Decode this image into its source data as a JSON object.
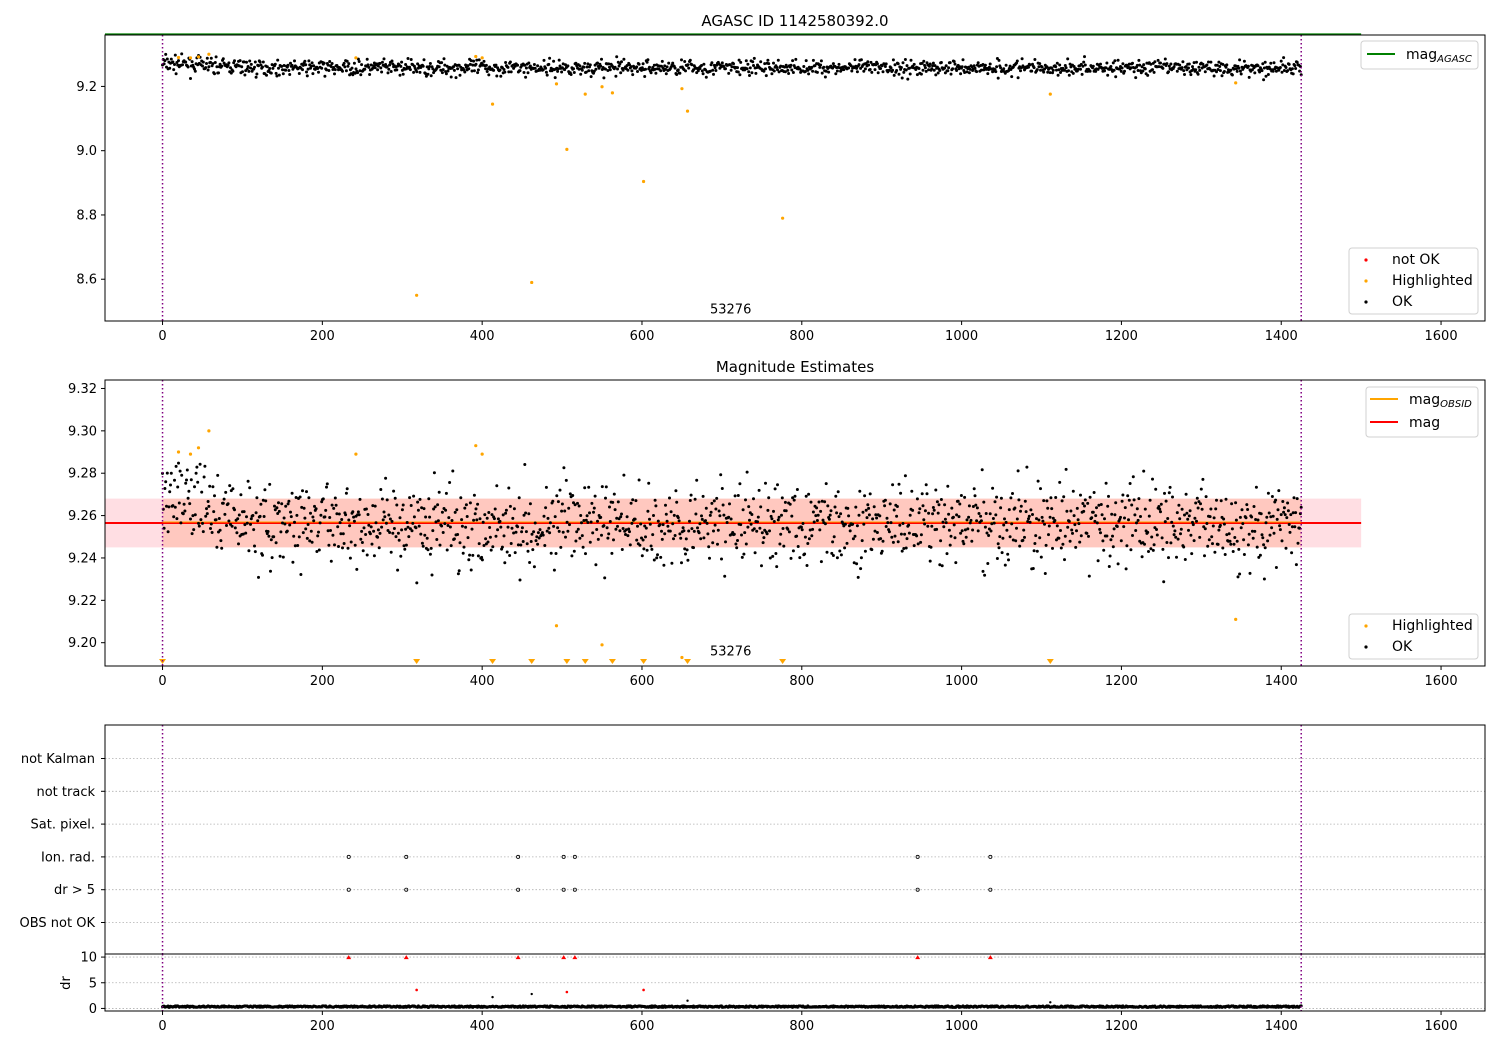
{
  "figure": {
    "title": "AGASC ID 1142580392.0",
    "panel2_title": "Magnitude Estimates",
    "obsid_label": "53276"
  },
  "colors": {
    "ok": "#000000",
    "highlighted": "#ffa500",
    "not_ok": "#ff0000",
    "mag_agasc": "#008000",
    "mag_obsid": "#ffa500",
    "mag": "#ff0000",
    "band_fill": "#ffb6c1",
    "band_orange": "#ffa07a",
    "boundary": "#800080",
    "grid": "#b0b0b0"
  },
  "chart_data": [
    {
      "type": "scatter",
      "title": "AGASC ID 1142580392.0",
      "xlim": [
        -72,
        1655
      ],
      "ylim": [
        8.47,
        9.36
      ],
      "xticks": [
        0,
        200,
        400,
        600,
        800,
        1000,
        1200,
        1400,
        1600
      ],
      "yticks": [
        8.6,
        8.8,
        9.0,
        9.2
      ],
      "ytick_labels": [
        "8.6",
        "8.8",
        "9.0",
        "9.2"
      ],
      "obs_boundaries": [
        0,
        1425
      ],
      "annotation": {
        "text": "53276",
        "x": 711,
        "y": 8.5
      },
      "lines": [
        {
          "name": "mag_AGASC",
          "y": 9.362,
          "x": [
            -72,
            1500
          ]
        }
      ],
      "ok_series": {
        "name": "OK",
        "n": 1425,
        "mean": 9.258,
        "spread": 0.012,
        "mean_start": 9.272
      },
      "highlighted": {
        "name": "Highlighted",
        "x": [
          20,
          35,
          45,
          58,
          242,
          318,
          392,
          400,
          413,
          462,
          493,
          506,
          529,
          550,
          563,
          602,
          650,
          657,
          776,
          1111,
          1343
        ],
        "y": [
          9.29,
          9.289,
          9.292,
          9.3,
          9.289,
          8.55,
          9.293,
          9.289,
          9.145,
          8.59,
          9.208,
          9.004,
          9.176,
          9.199,
          9.18,
          8.904,
          9.193,
          9.123,
          8.79,
          9.176,
          9.211
        ]
      },
      "legend": [
        {
          "label": "mag",
          "sub": "AGASC",
          "kind": "line",
          "color_key": "mag_agasc",
          "location": "upper right"
        },
        {
          "label": "not OK",
          "kind": "point",
          "color_key": "not_ok",
          "location": "lower right"
        },
        {
          "label": "Highlighted",
          "kind": "point",
          "color_key": "highlighted",
          "location": "lower right"
        },
        {
          "label": "OK",
          "kind": "point",
          "color_key": "ok",
          "location": "lower right"
        }
      ]
    },
    {
      "type": "scatter",
      "title": "Magnitude Estimates",
      "xlim": [
        -72,
        1655
      ],
      "ylim": [
        9.189,
        9.324
      ],
      "xticks": [
        0,
        200,
        400,
        600,
        800,
        1000,
        1200,
        1400,
        1600
      ],
      "yticks": [
        9.2,
        9.22,
        9.24,
        9.26,
        9.28,
        9.3,
        9.32
      ],
      "ytick_labels": [
        "9.20",
        "9.22",
        "9.24",
        "9.26",
        "9.28",
        "9.30",
        "9.32"
      ],
      "obs_boundaries": [
        0,
        1425
      ],
      "annotation": {
        "text": "53276",
        "x": 711,
        "y": 9.195
      },
      "bands": [
        {
          "name": "mag",
          "low": 9.245,
          "high": 9.268,
          "x": [
            -72,
            1500
          ]
        },
        {
          "name": "mag_OBSID",
          "low": 9.245,
          "high": 9.268,
          "x": [
            0,
            1425
          ]
        }
      ],
      "lines": [
        {
          "name": "mag",
          "y": 9.2565,
          "x": [
            -72,
            1500
          ]
        },
        {
          "name": "mag_OBSID",
          "y": 9.2565,
          "x": [
            0,
            1425
          ]
        }
      ],
      "ok_series": {
        "name": "OK",
        "n": 1425,
        "mean": 9.256,
        "spread": 0.0095,
        "mean_start": 9.27
      },
      "highlighted": {
        "name": "Highlighted",
        "x": [
          20,
          35,
          45,
          58,
          242,
          392,
          400,
          493,
          550,
          650,
          1343
        ],
        "y": [
          9.29,
          9.289,
          9.292,
          9.3,
          9.289,
          9.293,
          9.289,
          9.208,
          9.199,
          9.193,
          9.211
        ]
      },
      "offscale_low": {
        "x": [
          0,
          318,
          413,
          462,
          506,
          529,
          563,
          602,
          657,
          776,
          1111
        ]
      },
      "legend": [
        {
          "label": "mag",
          "sub": "OBSID",
          "kind": "line",
          "color_key": "mag_obsid",
          "location": "upper right"
        },
        {
          "label": "mag",
          "kind": "line",
          "color_key": "mag",
          "location": "upper right"
        },
        {
          "label": "Highlighted",
          "kind": "point",
          "color_key": "highlighted",
          "location": "lower right"
        },
        {
          "label": "OK",
          "kind": "point",
          "color_key": "ok",
          "location": "lower right"
        }
      ]
    },
    {
      "type": "scatter",
      "title": "",
      "xlim": [
        -72,
        1655
      ],
      "categories": [
        "not Kalman",
        "not track",
        "Sat. pixel.",
        "Ion. rad.",
        "dr > 5",
        "OBS not OK"
      ],
      "obs_boundaries": [
        0,
        1425
      ],
      "flag_points": {
        "Ion. rad.": [
          233,
          305,
          445,
          502,
          516,
          945,
          1036
        ],
        "dr > 5": [
          233,
          305,
          445,
          502,
          516,
          945,
          1036
        ]
      }
    },
    {
      "type": "scatter",
      "title": "",
      "xlim": [
        -72,
        1655
      ],
      "ylim": [
        -0.5,
        10.6
      ],
      "ylabel": "dr",
      "yticks": [
        0,
        5,
        10
      ],
      "ytick_labels": [
        "0",
        "5",
        "10"
      ],
      "xticks": [
        0,
        200,
        400,
        600,
        800,
        1000,
        1200,
        1400,
        1600
      ],
      "obs_boundaries": [
        0,
        1425
      ],
      "clipped_points": {
        "x": [
          233,
          305,
          445,
          502,
          516,
          945,
          1036
        ],
        "y": 10
      },
      "not_ok_points": {
        "x": [
          318,
          506,
          602
        ],
        "y": [
          3.6,
          3.2,
          3.6
        ]
      },
      "ok_points_extra": {
        "x": [
          413,
          462,
          657,
          1111
        ],
        "y": [
          2.2,
          2.8,
          1.5,
          1.2
        ]
      },
      "ok_series": {
        "name": "OK",
        "n": 1425,
        "mean": 0.35,
        "spread": 0.15
      }
    }
  ]
}
